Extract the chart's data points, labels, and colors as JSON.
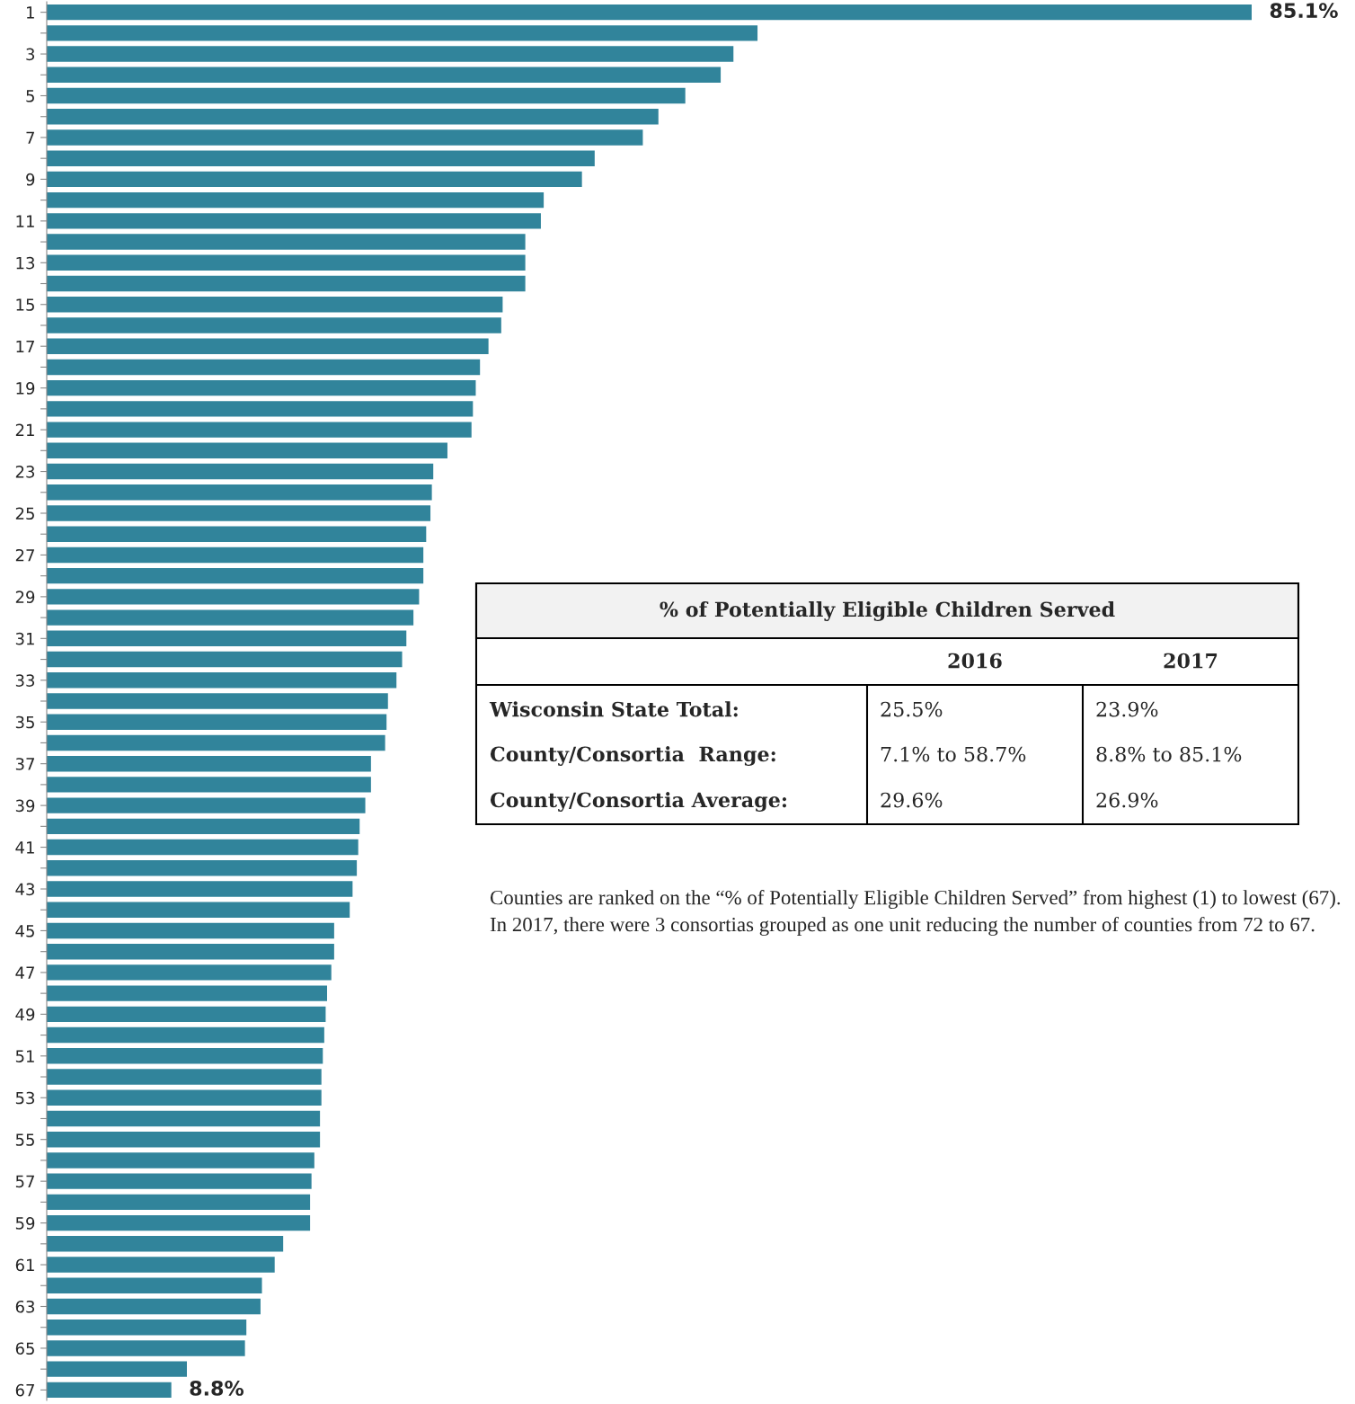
{
  "chart_data": {
    "type": "bar",
    "orientation": "horizontal",
    "xlim": [
      0,
      85.1
    ],
    "tick_labels": "y",
    "color": "#31849b",
    "categories": [
      "1",
      null,
      "3",
      null,
      "5",
      null,
      "7",
      null,
      "9",
      null,
      "11",
      null,
      "13",
      null,
      "15",
      null,
      "17",
      null,
      "19",
      null,
      "21",
      null,
      "23",
      null,
      "25",
      null,
      "27",
      null,
      "29",
      null,
      "31",
      null,
      "33",
      null,
      "35",
      null,
      "37",
      null,
      "39",
      null,
      "41",
      null,
      "43",
      null,
      "45",
      null,
      "47",
      null,
      "49",
      null,
      "51",
      null,
      "53",
      null,
      "55",
      null,
      "57",
      null,
      "59",
      null,
      "61",
      null,
      "63",
      null,
      "65",
      null,
      "67"
    ],
    "values": [
      85.1,
      50.2,
      48.5,
      47.6,
      45.1,
      43.2,
      42.1,
      38.7,
      37.8,
      35.1,
      34.9,
      33.8,
      33.8,
      33.8,
      32.2,
      32.1,
      31.2,
      30.6,
      30.3,
      30.1,
      30.0,
      28.3,
      27.3,
      27.2,
      27.1,
      26.8,
      26.6,
      26.6,
      26.3,
      25.9,
      25.4,
      25.1,
      24.7,
      24.1,
      24.0,
      23.9,
      22.9,
      22.9,
      22.5,
      22.1,
      22.0,
      21.9,
      21.6,
      21.4,
      20.3,
      20.3,
      20.1,
      19.8,
      19.7,
      19.6,
      19.5,
      19.4,
      19.4,
      19.3,
      19.3,
      18.9,
      18.7,
      18.6,
      18.6,
      16.7,
      16.1,
      15.2,
      15.1,
      14.1,
      14.0,
      9.9,
      8.8
    ],
    "value_labels": [
      "85.1%",
      null,
      null,
      null,
      null,
      null,
      null,
      null,
      null,
      null,
      null,
      null,
      null,
      null,
      null,
      null,
      null,
      null,
      null,
      null,
      null,
      null,
      null,
      null,
      null,
      null,
      null,
      null,
      null,
      null,
      null,
      null,
      null,
      null,
      null,
      null,
      null,
      null,
      null,
      null,
      null,
      null,
      null,
      null,
      null,
      null,
      null,
      null,
      null,
      null,
      null,
      null,
      null,
      null,
      null,
      null,
      null,
      null,
      null,
      null,
      null,
      null,
      null,
      null,
      null,
      null,
      "8.8%"
    ],
    "grid": false,
    "legend": false,
    "annotations": [
      "% of Potentially Eligible Children Served",
      "2016",
      "2017",
      "Wisconsin State Total:",
      "25.5%",
      "23.9%",
      "County/Consortia  Range:",
      "7.1% to 58.7%",
      "8.8% to 85.1%",
      "County/Consortia Average:",
      "29.6%",
      "26.9%",
      "Counties are ranked on the “% of Potentially Eligible Children Served” from highest (1) to lowest (67). In 2017, there were 3 consortias grouped as one unit reducing the number of counties from 72 to 67."
    ]
  }
}
